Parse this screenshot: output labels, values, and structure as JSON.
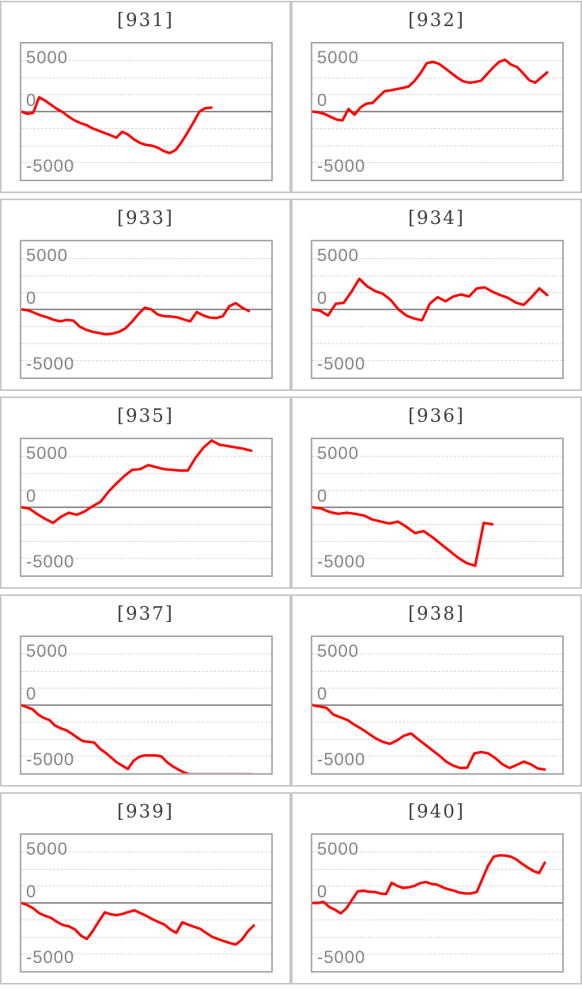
{
  "style": {
    "line_color": "#ff0000",
    "grid_color": "#d4d4d4",
    "zero_line_color": "#8e8e8e",
    "plot_border_color": "#a8a8a8",
    "card_border_color": "#c7c7c7",
    "title_color": "#3e3e3e",
    "tick_color": "#848484"
  },
  "axis": {
    "ticks": [
      "5000",
      "0",
      "-5000"
    ],
    "ylim": [
      -5000,
      5000
    ],
    "gridline_step": 1250
  },
  "chart_data": [
    {
      "type": "line",
      "title": "[931]",
      "xlabel": "",
      "ylabel": "",
      "ylim": [
        -5000,
        5000
      ],
      "grid": true,
      "legend": false,
      "x_end_fraction": 0.76,
      "values": [
        0,
        -170,
        -80,
        1050,
        800,
        500,
        190,
        -50,
        -380,
        -650,
        -850,
        -1000,
        -1230,
        -1400,
        -1570,
        -1730,
        -1920,
        -1480,
        -1700,
        -2050,
        -2300,
        -2450,
        -2500,
        -2650,
        -2900,
        -3050,
        -2820,
        -2250,
        -1540,
        -800,
        0,
        250,
        290
      ]
    },
    {
      "type": "line",
      "title": "[932]",
      "xlabel": "",
      "ylabel": "",
      "ylim": [
        -5000,
        5000
      ],
      "grid": true,
      "legend": false,
      "x_end_fraction": 0.94,
      "values": [
        0,
        -50,
        -170,
        -380,
        -580,
        -650,
        190,
        -230,
        310,
        580,
        640,
        1080,
        1500,
        1560,
        1650,
        1730,
        1850,
        2270,
        2850,
        3560,
        3650,
        3520,
        3190,
        2850,
        2520,
        2230,
        2120,
        2170,
        2270,
        2750,
        3230,
        3650,
        3810,
        3450,
        3270,
        2810,
        2310,
        2120,
        2500,
        2880
      ]
    },
    {
      "type": "line",
      "title": "[933]",
      "xlabel": "",
      "ylabel": "",
      "ylim": [
        -5000,
        5000
      ],
      "grid": true,
      "legend": false,
      "x_end_fraction": 0.91,
      "values": [
        0,
        -60,
        -250,
        -440,
        -580,
        -770,
        -880,
        -770,
        -820,
        -1270,
        -1500,
        -1650,
        -1730,
        -1830,
        -1780,
        -1650,
        -1400,
        -920,
        -350,
        130,
        0,
        -380,
        -500,
        -520,
        -580,
        -730,
        -880,
        -190,
        -440,
        -600,
        -635,
        -500,
        230,
        460,
        130,
        -115
      ]
    },
    {
      "type": "line",
      "title": "[934]",
      "xlabel": "",
      "ylabel": "",
      "ylim": [
        -5000,
        5000
      ],
      "grid": true,
      "legend": false,
      "x_end_fraction": 0.94,
      "values": [
        0,
        -100,
        -450,
        420,
        480,
        1300,
        2250,
        1700,
        1350,
        1150,
        700,
        0,
        -450,
        -670,
        -800,
        420,
        900,
        600,
        950,
        1100,
        950,
        1540,
        1620,
        1300,
        1050,
        850,
        500,
        330,
        900,
        1540,
        1050
      ]
    },
    {
      "type": "line",
      "title": "[935]",
      "xlabel": "",
      "ylabel": "",
      "ylim": [
        -5000,
        5000
      ],
      "grid": true,
      "legend": false,
      "x_end_fraction": 0.92,
      "values": [
        0,
        -100,
        -500,
        -850,
        -1150,
        -700,
        -400,
        -550,
        -300,
        80,
        400,
        1150,
        1750,
        2300,
        2750,
        2800,
        3100,
        2950,
        2800,
        2750,
        2700,
        2700,
        3650,
        4400,
        4900,
        4600,
        4500,
        4400,
        4300,
        4150
      ]
    },
    {
      "type": "line",
      "title": "[936]",
      "xlabel": "",
      "ylabel": "",
      "ylim": [
        -5000,
        5000
      ],
      "grid": true,
      "legend": false,
      "x_end_fraction": 0.72,
      "values": [
        0,
        -80,
        -350,
        -480,
        -400,
        -480,
        -600,
        -900,
        -1050,
        -1200,
        -1050,
        -1450,
        -1900,
        -1750,
        -2200,
        -2700,
        -3200,
        -3700,
        -4100,
        -4300,
        -1150,
        -1250
      ]
    },
    {
      "type": "line",
      "title": "[937]",
      "xlabel": "",
      "ylabel": "",
      "ylim": [
        -5000,
        5000
      ],
      "grid": true,
      "legend": false,
      "x_end_fraction": 0.92,
      "values": [
        0,
        -150,
        -300,
        -700,
        -950,
        -1100,
        -1500,
        -1700,
        -1850,
        -2100,
        -2400,
        -2650,
        -2700,
        -2750,
        -3200,
        -3500,
        -3850,
        -4200,
        -4450,
        -4700,
        -4100,
        -3800,
        -3700,
        -3700,
        -3700,
        -3780,
        -4200,
        -4500,
        -4730,
        -4950,
        -5080,
        -5080,
        -5080,
        -5080,
        -5080,
        -5080,
        -5080,
        -5080,
        -5080,
        -5080,
        -5080,
        -5080
      ]
    },
    {
      "type": "line",
      "title": "[938]",
      "xlabel": "",
      "ylabel": "",
      "ylim": [
        -5000,
        5000
      ],
      "grid": true,
      "legend": false,
      "x_end_fraction": 0.93,
      "values": [
        0,
        -100,
        -200,
        -700,
        -900,
        -1100,
        -1450,
        -1750,
        -2100,
        -2450,
        -2700,
        -2850,
        -2600,
        -2250,
        -2080,
        -2500,
        -2900,
        -3300,
        -3700,
        -4150,
        -4450,
        -4620,
        -4600,
        -3550,
        -3450,
        -3550,
        -3900,
        -4350,
        -4620,
        -4400,
        -4150,
        -4350,
        -4650,
        -4730
      ]
    },
    {
      "type": "line",
      "title": "[939]",
      "xlabel": "",
      "ylabel": "",
      "ylim": [
        -5000,
        5000
      ],
      "grid": true,
      "legend": false,
      "x_end_fraction": 0.93,
      "values": [
        0,
        -150,
        -400,
        -750,
        -950,
        -1100,
        -1400,
        -1620,
        -1720,
        -1950,
        -2400,
        -2650,
        -2050,
        -1350,
        -690,
        -830,
        -900,
        -800,
        -660,
        -540,
        -750,
        -950,
        -1200,
        -1400,
        -1580,
        -1950,
        -2200,
        -1420,
        -1600,
        -1750,
        -1900,
        -2200,
        -2480,
        -2650,
        -2800,
        -2950,
        -3050,
        -2700,
        -2100,
        -1650
      ]
    },
    {
      "type": "line",
      "title": "[940]",
      "xlabel": "",
      "ylabel": "",
      "ylim": [
        -5000,
        5000
      ],
      "grid": true,
      "legend": false,
      "x_end_fraction": 0.93,
      "values": [
        0,
        0,
        80,
        -300,
        -500,
        -770,
        -400,
        230,
        850,
        900,
        820,
        800,
        700,
        650,
        1480,
        1250,
        1100,
        1150,
        1250,
        1450,
        1540,
        1400,
        1350,
        1150,
        1000,
        900,
        750,
        700,
        700,
        800,
        1770,
        2730,
        3400,
        3500,
        3480,
        3400,
        3200,
        2880,
        2600,
        2350,
        2190,
        2960
      ]
    }
  ]
}
